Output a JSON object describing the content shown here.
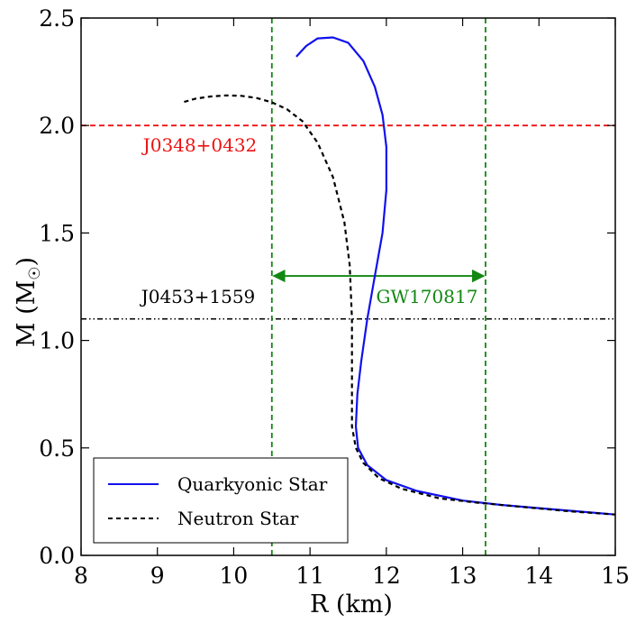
{
  "chart_data": {
    "type": "line",
    "title": "",
    "xlabel": "R (km)",
    "ylabel_main": "M (M",
    "ylabel_sub": "☉",
    "ylabel_close": ")",
    "xlim": [
      8,
      15
    ],
    "ylim": [
      0,
      2.5
    ],
    "x_ticks": [
      8,
      9,
      10,
      11,
      12,
      13,
      14,
      15
    ],
    "x_tick_labels": [
      "8",
      "9",
      "10",
      "11",
      "12",
      "13",
      "14",
      "15"
    ],
    "y_ticks": [
      0,
      0.5,
      1.0,
      1.5,
      2.0,
      2.5
    ],
    "y_tick_labels": [
      "0.0",
      "0.5",
      "1.0",
      "1.5",
      "2.0",
      "2.5"
    ],
    "series": [
      {
        "name": "Quarkyonic Star",
        "color": "#1010ee",
        "style": "solid",
        "x": [
          10.82,
          10.95,
          11.1,
          11.3,
          11.5,
          11.7,
          11.85,
          11.95,
          12.0,
          12.0,
          11.95,
          11.85,
          11.75,
          11.67,
          11.62,
          11.6,
          11.63,
          11.75,
          12.0,
          12.4,
          13.0,
          13.5,
          14.0,
          14.5,
          15.0
        ],
        "y": [
          2.32,
          2.37,
          2.405,
          2.41,
          2.385,
          2.3,
          2.18,
          2.05,
          1.9,
          1.7,
          1.5,
          1.3,
          1.1,
          0.9,
          0.75,
          0.6,
          0.5,
          0.42,
          0.35,
          0.3,
          0.255,
          0.235,
          0.22,
          0.205,
          0.19
        ]
      },
      {
        "name": "Neutron Star",
        "color": "#000000",
        "style": "dashed",
        "x": [
          9.35,
          9.5,
          9.7,
          9.9,
          10.1,
          10.3,
          10.5,
          10.7,
          10.9,
          11.1,
          11.3,
          11.45,
          11.52,
          11.55,
          11.55,
          11.55,
          11.6,
          11.7,
          11.9,
          12.2,
          12.7,
          13.2,
          13.8,
          14.4,
          15.0
        ],
        "y": [
          2.11,
          2.125,
          2.135,
          2.14,
          2.138,
          2.128,
          2.108,
          2.075,
          2.02,
          1.92,
          1.76,
          1.55,
          1.35,
          1.1,
          0.8,
          0.6,
          0.5,
          0.43,
          0.36,
          0.31,
          0.265,
          0.245,
          0.225,
          0.205,
          0.19
        ]
      }
    ],
    "annotations": {
      "j0348": {
        "text": "J0348+0432",
        "y": 2.0,
        "color": "#ee1111"
      },
      "j0453": {
        "text": "J0453+1559",
        "y": 1.1,
        "color": "#000000"
      },
      "gw": {
        "text": "GW170817",
        "x_left": 10.5,
        "x_right": 13.3,
        "arrow_y": 1.3,
        "color": "#118811"
      }
    },
    "legend": {
      "position": "bottom-left",
      "entries": [
        "Quarkyonic Star",
        "Neutron Star"
      ]
    },
    "grid": false
  }
}
